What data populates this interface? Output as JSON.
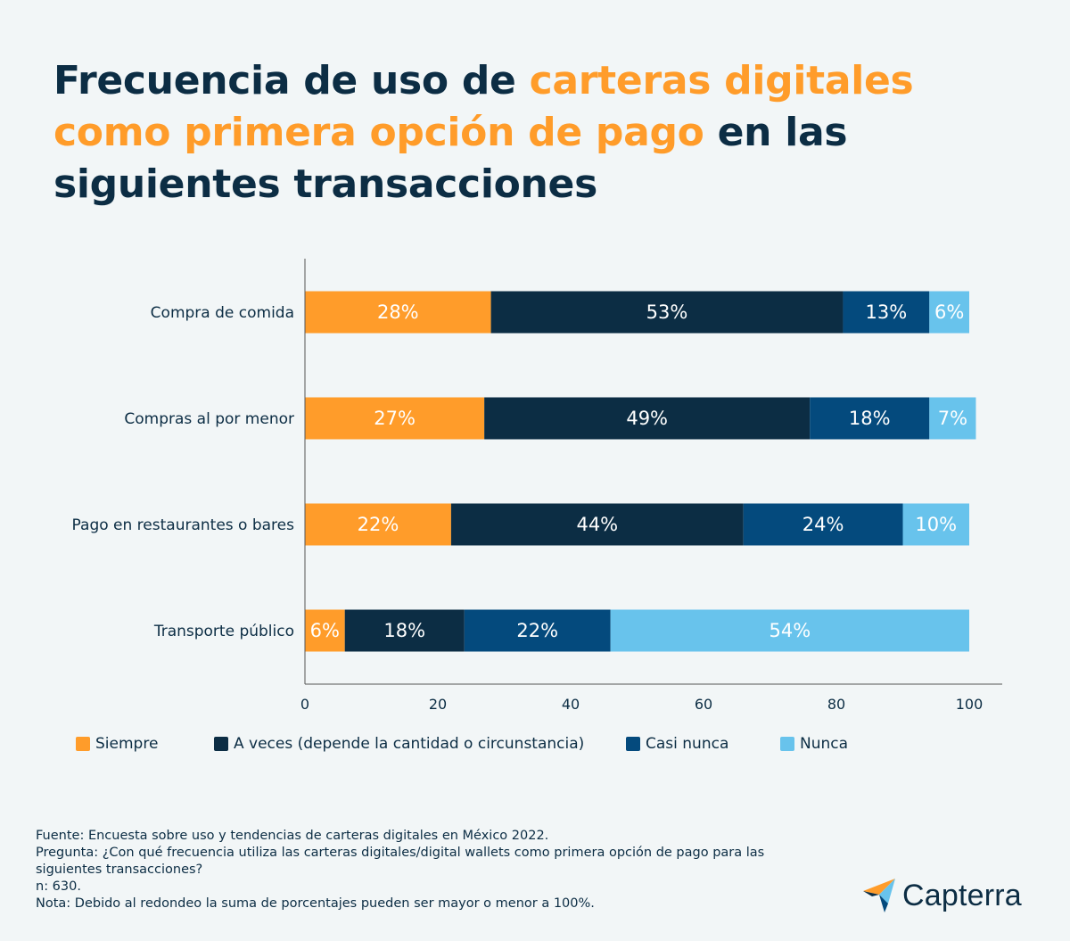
{
  "title": {
    "part1": "Frecuencia de uso de ",
    "part2": "carteras digitales como primera opción de pago",
    "part3": " en las siguientes transacciones"
  },
  "colors": {
    "Siempre": "#ff9c2a",
    "A veces": "#0c2d44",
    "Casi nunca": "#044a7d",
    "Nunca": "#68c3ec"
  },
  "chart_data": {
    "type": "bar",
    "orientation": "horizontal",
    "stacked": true,
    "categories": [
      "Compra de comida",
      "Compras al por menor",
      "Pago en restaurantes o bares",
      "Transporte público"
    ],
    "series": [
      {
        "name": "Siempre",
        "values": [
          28,
          27,
          22,
          6
        ],
        "labels": [
          "28%",
          "27%",
          "22%",
          "6%"
        ]
      },
      {
        "name": "A veces (depende la cantidad o circunstancia)",
        "values": [
          53,
          49,
          44,
          18
        ],
        "labels": [
          "53%",
          "49%",
          "44%",
          "18%"
        ]
      },
      {
        "name": "Casi nunca",
        "values": [
          13,
          18,
          24,
          22
        ],
        "labels": [
          "13%",
          "18%",
          "24%",
          "22%"
        ]
      },
      {
        "name": "Nunca",
        "values": [
          6,
          7,
          10,
          54
        ],
        "labels": [
          "6%",
          "7%",
          "10%",
          "54%"
        ]
      }
    ],
    "xlim": [
      0,
      105
    ],
    "xticks": [
      0,
      20,
      40,
      60,
      80,
      100
    ],
    "grid": false,
    "legend": "bottom"
  },
  "footer": {
    "source": "Fuente: Encuesta sobre uso y tendencias de carteras digitales en México 2022.",
    "question": "Pregunta: ¿Con qué frecuencia utiliza las carteras digitales/digital wallets como primera opción de pago para las siguientes transacciones?",
    "n": "n: 630.",
    "note": "Nota: Debido al redondeo la suma de porcentajes pueden ser mayor o menor a 100%."
  },
  "brand": {
    "name": "Capterra",
    "icon": "capterra-arrow-icon"
  }
}
